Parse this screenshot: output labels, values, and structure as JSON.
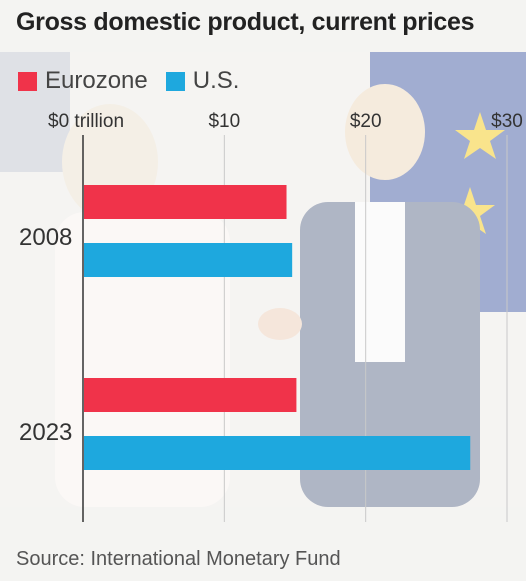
{
  "colors": {
    "eurozone": "#f0334a",
    "us": "#1ea8de"
  },
  "chart_data": {
    "type": "bar",
    "orientation": "horizontal",
    "title": "Gross domestic product, current prices",
    "categories": [
      "2008",
      "2023"
    ],
    "series": [
      {
        "name": "Eurozone",
        "values": [
          14.4,
          15.1
        ]
      },
      {
        "name": "U.S.",
        "values": [
          14.8,
          27.4
        ]
      }
    ],
    "xlim": [
      0,
      30
    ],
    "xticks": [
      {
        "value": 0,
        "label": "$0 trillion"
      },
      {
        "value": 10,
        "label": "$10"
      },
      {
        "value": 20,
        "label": "$20"
      },
      {
        "value": 30,
        "label": "$30"
      }
    ],
    "grid": true,
    "legend": "top-left"
  },
  "source": "Source: International Monetary Fund"
}
